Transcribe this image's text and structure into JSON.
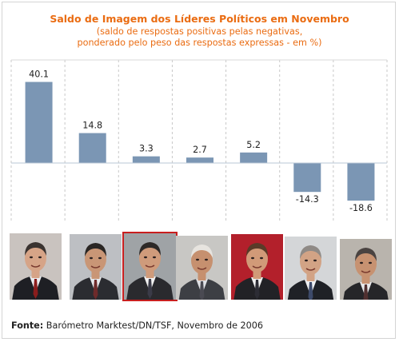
{
  "chart_data": {
    "type": "bar",
    "title": "Saldo de Imagem dos Líderes Políticos em Novembro",
    "subtitle_lines": [
      "(saldo de respostas positivas pelas negativas,",
      "ponderado pelo peso das respostas expressas - em %)"
    ],
    "categories": [
      "",
      "",
      "",
      "",
      "",
      "",
      ""
    ],
    "values": [
      40.1,
      14.8,
      3.3,
      2.7,
      5.2,
      -14.3,
      -18.6
    ],
    "value_labels": [
      "40.1",
      "14.8",
      "3.3",
      "2.7",
      "5.2",
      "-14.3",
      "-18.6"
    ],
    "ylim": [
      -25,
      45
    ],
    "grid": "vertical dashed separators",
    "bar_color": "#7b96b4"
  },
  "photos": [
    {
      "name": "leader-1",
      "bg": "#c9c3bf",
      "skin": "#d6a487",
      "hair": "#3a3330",
      "suit": "#1e1f24",
      "shirt": "#e9ecef",
      "tie": "#8b1d1d",
      "border": false
    },
    {
      "name": "leader-2",
      "bg": "#bdbfc3",
      "skin": "#c99676",
      "hair": "#2a2624",
      "suit": "#2b2c31",
      "shirt": "#e6e8eb",
      "tie": "#6e2b2b",
      "border": false
    },
    {
      "name": "leader-3",
      "bg": "#9fa3a6",
      "skin": "#cf9b7b",
      "hair": "#2d2927",
      "suit": "#2a2a2e",
      "shirt": "#f1f1f1",
      "tie": "#3b3b48",
      "border": true
    },
    {
      "name": "leader-4",
      "bg": "#c8c7c4",
      "skin": "#c6906f",
      "hair": "#e7e4df",
      "suit": "#3d3f44",
      "shirt": "#dfe1e5",
      "tie": "#4a4a52",
      "border": false
    },
    {
      "name": "leader-5",
      "bg": "#b3202b",
      "skin": "#d19a78",
      "hair": "#5a3b28",
      "suit": "#222226",
      "shirt": "#efefef",
      "tie": "#2c2c34",
      "border": false
    },
    {
      "name": "leader-6",
      "bg": "#d4d6d8",
      "skin": "#d2a385",
      "hair": "#8f8a86",
      "suit": "#1f2126",
      "shirt": "#eef0f2",
      "tie": "#3d4a6a",
      "border": false
    },
    {
      "name": "leader-7",
      "bg": "#b9b4ad",
      "skin": "#c79271",
      "hair": "#4a4341",
      "suit": "#262629",
      "shirt": "#e7e8ea",
      "tie": "#513030",
      "border": false
    }
  ],
  "source": {
    "label": "Fonte:",
    "text": " Barómetro Marktest/DN/TSF, Novembro de 2006"
  }
}
